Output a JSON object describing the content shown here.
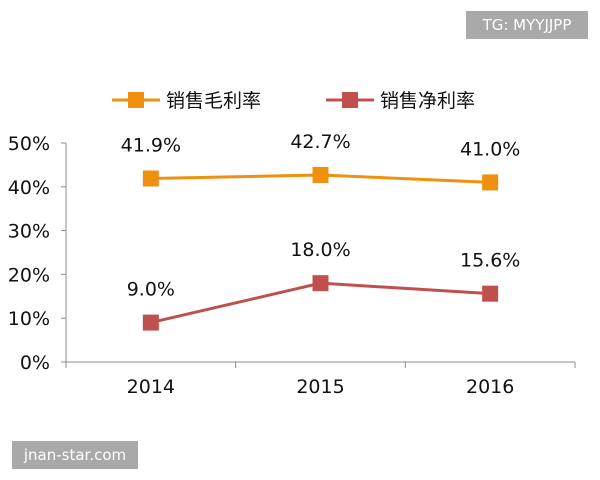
{
  "watermarks": {
    "top_right": "TG: MYYJJPP",
    "bottom_left": "jnan-star.com"
  },
  "chart_data": {
    "type": "line",
    "categories": [
      "2014",
      "2015",
      "2016"
    ],
    "series": [
      {
        "name": "销售毛利率",
        "values": [
          41.9,
          42.7,
          41.0
        ],
        "labels": [
          "41.9%",
          "42.7%",
          "41.0%"
        ],
        "color": "#f0900f",
        "marker": "square"
      },
      {
        "name": "销售净利率",
        "values": [
          9.0,
          18.0,
          15.6
        ],
        "labels": [
          "9.0%",
          "18.0%",
          "15.6%"
        ],
        "color": "#c0504d",
        "marker": "square"
      }
    ],
    "ylim": [
      0,
      50
    ],
    "yticks": [
      0,
      10,
      20,
      30,
      40,
      50
    ],
    "ytick_labels": [
      "0%",
      "10%",
      "20%",
      "30%",
      "40%",
      "50%"
    ],
    "legend_position": "top",
    "grid": false
  }
}
